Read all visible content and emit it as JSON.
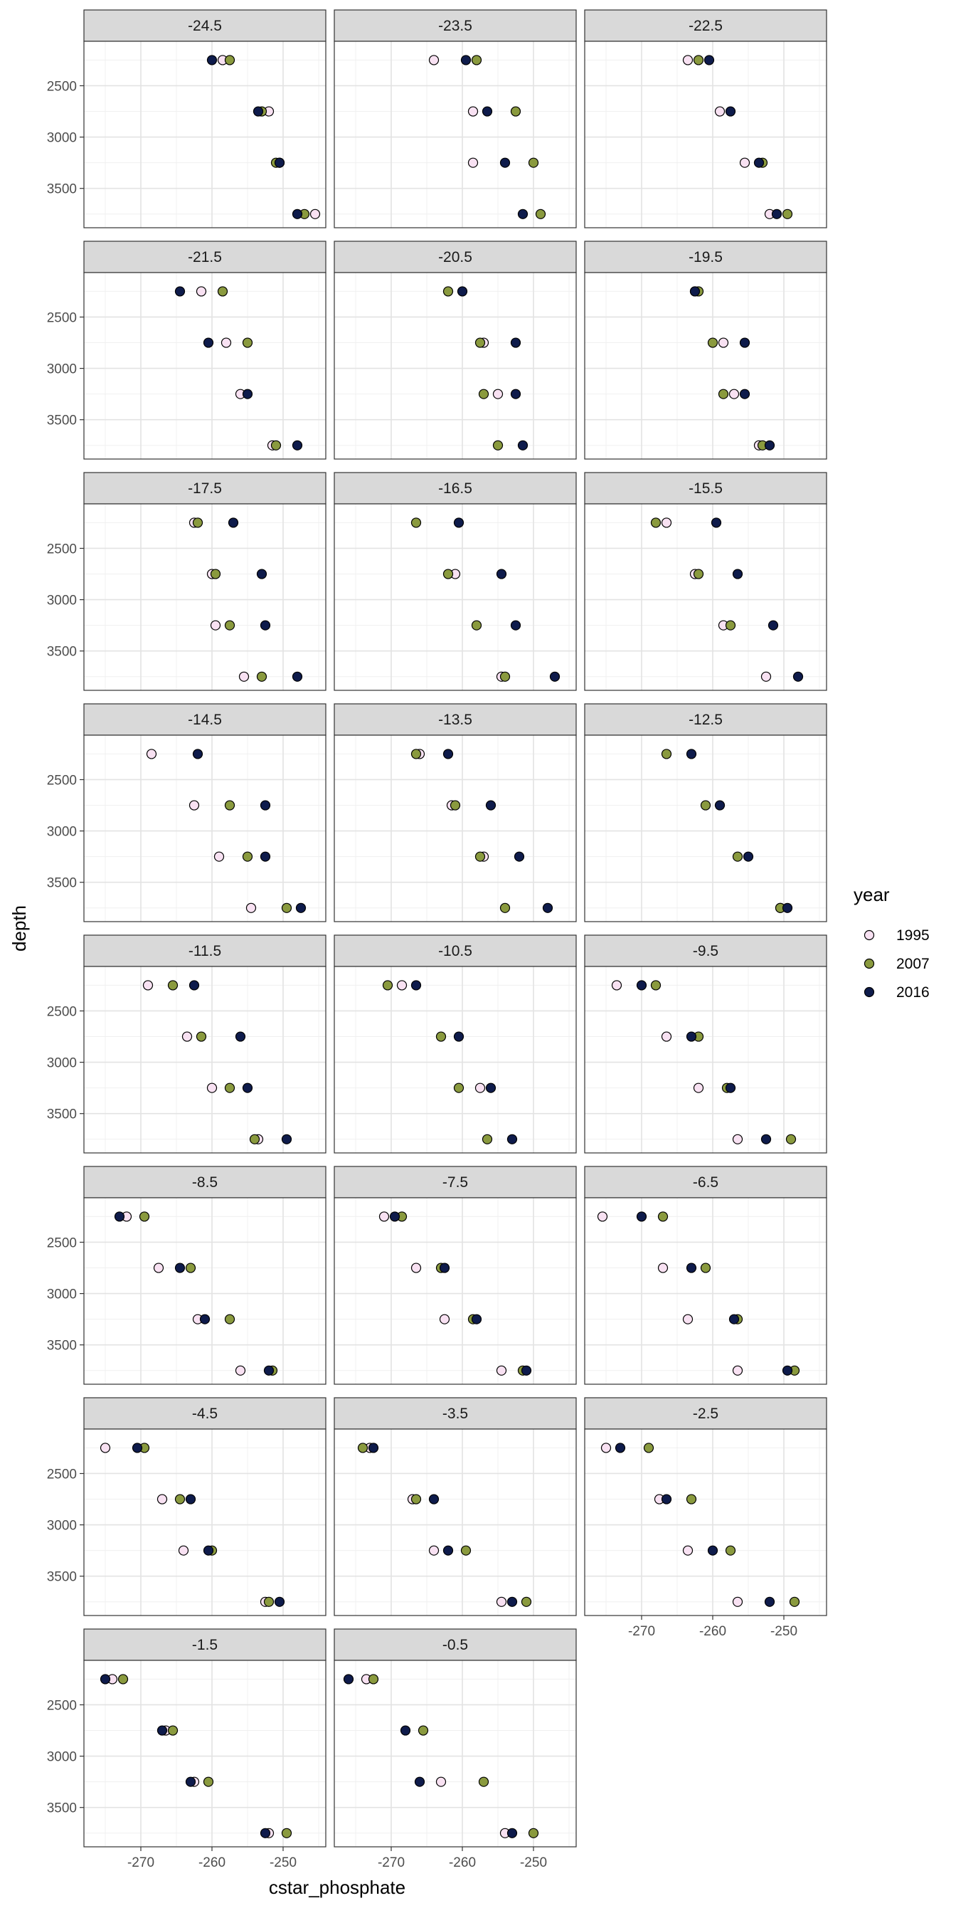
{
  "chart_data": {
    "type": "scatter",
    "title": "",
    "xlabel": "cstar_phosphate",
    "ylabel": "depth",
    "xlim": [
      -277,
      -245
    ],
    "ylim": [
      2150,
      3800
    ],
    "y_reversed": true,
    "xticks": [
      -270,
      -260,
      -250
    ],
    "yticks": [
      2500,
      3000,
      3500
    ],
    "grid": true,
    "facet_by": "latitude bin",
    "layout": {
      "columns": 3,
      "rows": 8
    },
    "depths": [
      2250,
      2750,
      3250,
      3750
    ],
    "legend": {
      "title": "year",
      "position": "right",
      "entries": [
        {
          "label": "1995",
          "color": "#F8E1F2"
        },
        {
          "label": "2007",
          "color": "#8A9A3E"
        },
        {
          "label": "2016",
          "color": "#0E1B4B"
        }
      ]
    },
    "panels": [
      {
        "label": "-24.5",
        "series": {
          "1995": [
            -258.5,
            -252.0,
            -250.5,
            -245.5
          ],
          "2007": [
            -257.5,
            -253.0,
            -251.0,
            -247.0
          ],
          "2016": [
            -260.0,
            -253.5,
            -250.5,
            -248.0
          ]
        }
      },
      {
        "label": "-23.5",
        "series": {
          "1995": [
            -264.0,
            -258.5,
            -258.5,
            null
          ],
          "2007": [
            -258.0,
            -252.5,
            -250.0,
            -249.0
          ],
          "2016": [
            -259.5,
            -256.5,
            -254.0,
            -251.5
          ]
        }
      },
      {
        "label": "-22.5",
        "series": {
          "1995": [
            -263.5,
            -259.0,
            -255.5,
            -252.0
          ],
          "2007": [
            -262.0,
            null,
            -253.0,
            -249.5
          ],
          "2016": [
            -260.5,
            -257.5,
            -253.5,
            -251.0
          ]
        }
      },
      {
        "label": "-21.5",
        "series": {
          "1995": [
            -261.5,
            -258.0,
            -256.0,
            -251.5
          ],
          "2007": [
            -258.5,
            -255.0,
            null,
            -251.0
          ],
          "2016": [
            -264.5,
            -260.5,
            -255.0,
            -248.0
          ]
        }
      },
      {
        "label": "-20.5",
        "series": {
          "1995": [
            null,
            -257.0,
            -255.0,
            null
          ],
          "2007": [
            -262.0,
            -257.5,
            -257.0,
            -255.0
          ],
          "2016": [
            -260.0,
            -252.5,
            -252.5,
            -251.5
          ]
        }
      },
      {
        "label": "-19.5",
        "series": {
          "1995": [
            -262.5,
            -258.5,
            -257.0,
            -253.5
          ],
          "2007": [
            -262.0,
            -260.0,
            -258.5,
            -253.0
          ],
          "2016": [
            -262.5,
            -255.5,
            -255.5,
            -252.0
          ]
        }
      },
      {
        "label": "-17.5",
        "series": {
          "1995": [
            -262.5,
            -260.0,
            -259.5,
            -255.5
          ],
          "2007": [
            -262.0,
            -259.5,
            -257.5,
            -253.0
          ],
          "2016": [
            -257.0,
            -253.0,
            -252.5,
            -248.0
          ]
        }
      },
      {
        "label": "-16.5",
        "series": {
          "1995": [
            null,
            -261.0,
            null,
            -254.5
          ],
          "2007": [
            -266.5,
            -262.0,
            -258.0,
            -254.0
          ],
          "2016": [
            -260.5,
            -254.5,
            -252.5,
            -247.0
          ]
        }
      },
      {
        "label": "-15.5",
        "series": {
          "1995": [
            -266.5,
            -262.5,
            -258.5,
            -252.5
          ],
          "2007": [
            -268.0,
            -262.0,
            -257.5,
            null
          ],
          "2016": [
            -259.5,
            -256.5,
            -251.5,
            -248.0
          ]
        }
      },
      {
        "label": "-14.5",
        "series": {
          "1995": [
            -268.5,
            -262.5,
            -259.0,
            -254.5
          ],
          "2007": [
            null,
            -257.5,
            -255.0,
            -249.5
          ],
          "2016": [
            -262.0,
            -252.5,
            -252.5,
            -247.5
          ]
        }
      },
      {
        "label": "-13.5",
        "series": {
          "1995": [
            -266.0,
            -261.5,
            -257.0,
            null
          ],
          "2007": [
            -266.5,
            -261.0,
            -257.5,
            -254.0
          ],
          "2016": [
            -262.0,
            -256.0,
            -252.0,
            -248.0
          ]
        }
      },
      {
        "label": "-12.5",
        "series": {
          "1995": [
            null,
            null,
            null,
            -250.5
          ],
          "2007": [
            -266.5,
            -261.0,
            -256.5,
            -250.5
          ],
          "2016": [
            -263.0,
            -259.0,
            -255.0,
            -249.5
          ]
        }
      },
      {
        "label": "-11.5",
        "series": {
          "1995": [
            -269.0,
            -263.5,
            -260.0,
            -253.5
          ],
          "2007": [
            -265.5,
            -261.5,
            -257.5,
            -254.0
          ],
          "2016": [
            -262.5,
            -256.0,
            -255.0,
            -249.5
          ]
        }
      },
      {
        "label": "-10.5",
        "series": {
          "1995": [
            -268.5,
            null,
            -257.5,
            null
          ],
          "2007": [
            -270.5,
            -263.0,
            -260.5,
            -256.5
          ],
          "2016": [
            -266.5,
            -260.5,
            -256.0,
            -253.0
          ]
        }
      },
      {
        "label": "-9.5",
        "series": {
          "1995": [
            -273.5,
            -266.5,
            -262.0,
            -256.5
          ],
          "2007": [
            -268.0,
            -262.0,
            -258.0,
            -249.0
          ],
          "2016": [
            -270.0,
            -263.0,
            -257.5,
            -252.5
          ]
        }
      },
      {
        "label": "-8.5",
        "series": {
          "1995": [
            -272.0,
            -267.5,
            -262.0,
            -256.0
          ],
          "2007": [
            -269.5,
            -263.0,
            -257.5,
            -251.5
          ],
          "2016": [
            -273.0,
            -264.5,
            -261.0,
            -252.0
          ]
        }
      },
      {
        "label": "-7.5",
        "series": {
          "1995": [
            -271.0,
            -266.5,
            -262.5,
            -254.5
          ],
          "2007": [
            -268.5,
            -263.0,
            -258.5,
            -251.5
          ],
          "2016": [
            -269.5,
            -262.5,
            -258.0,
            -251.0
          ]
        }
      },
      {
        "label": "-6.5",
        "series": {
          "1995": [
            -275.5,
            -267.0,
            -263.5,
            -256.5
          ],
          "2007": [
            -267.0,
            -261.0,
            -256.5,
            -248.5
          ],
          "2016": [
            -270.0,
            -263.0,
            -257.0,
            -249.5
          ]
        }
      },
      {
        "label": "-4.5",
        "series": {
          "1995": [
            -275.0,
            -267.0,
            -264.0,
            -252.5
          ],
          "2007": [
            -269.5,
            -264.5,
            -260.0,
            -252.0
          ],
          "2016": [
            -270.5,
            -263.0,
            -260.5,
            -250.5
          ]
        }
      },
      {
        "label": "-3.5",
        "series": {
          "1995": [
            -273.0,
            -267.0,
            -264.0,
            -254.5
          ],
          "2007": [
            -274.0,
            -266.5,
            -259.5,
            -251.0
          ],
          "2016": [
            -272.5,
            -264.0,
            -262.0,
            -253.0
          ]
        }
      },
      {
        "label": "-2.5",
        "series": {
          "1995": [
            -275.0,
            -267.5,
            -263.5,
            -256.5
          ],
          "2007": [
            -269.0,
            -263.0,
            -257.5,
            -248.5
          ],
          "2016": [
            -273.0,
            -266.5,
            -260.0,
            -252.0
          ]
        }
      },
      {
        "label": "-1.5",
        "series": {
          "1995": [
            -274.0,
            -266.5,
            -262.5,
            -252.0
          ],
          "2007": [
            -272.5,
            -265.5,
            -260.5,
            -249.5
          ],
          "2016": [
            -275.0,
            -267.0,
            -263.0,
            -252.5
          ]
        }
      },
      {
        "label": "-0.5",
        "series": {
          "1995": [
            -273.5,
            null,
            -263.0,
            -254.0
          ],
          "2007": [
            -272.5,
            -265.5,
            -257.0,
            -250.0
          ],
          "2016": [
            -276.0,
            -268.0,
            -266.0,
            -253.0
          ]
        }
      }
    ]
  }
}
